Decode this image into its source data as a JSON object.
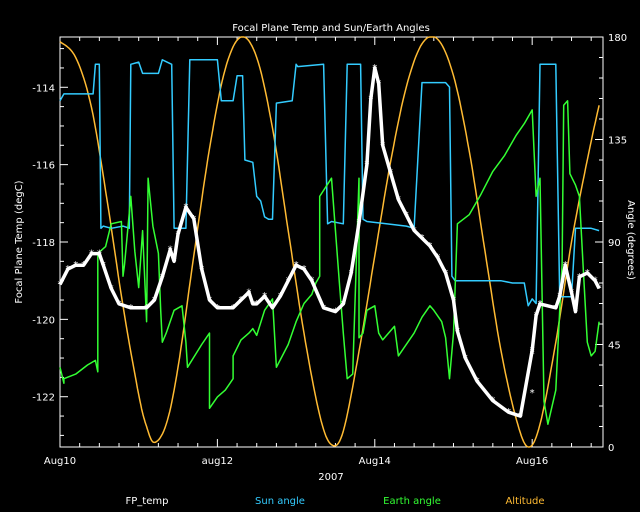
{
  "chart_data": {
    "type": "line",
    "title": "Focal Plane Temp and Sun/Earth Angles",
    "xlabel": "2007",
    "ylabel": "Focal Plane Temp (degC)",
    "ylabel_right": "Angle (degrees)",
    "x_ticks": [
      "Aug10",
      "aug12",
      "Aug14",
      "Aug16"
    ],
    "x_tick_days": [
      0,
      2,
      4,
      6
    ],
    "xlim_days": [
      0,
      6.9
    ],
    "ylim": [
      -123.3,
      -112.7
    ],
    "yticks": [
      -114,
      -116,
      -118,
      -120,
      -122
    ],
    "ylim_right": [
      0,
      180
    ],
    "yticks_right": [
      0,
      45,
      90,
      135,
      180
    ],
    "grid": false,
    "legend_position": "bottom",
    "series": [
      {
        "name": "FP_temp",
        "color": "#ffffff",
        "axis": "left",
        "marker": "star",
        "points": [
          [
            0.0,
            -119.1
          ],
          [
            0.1,
            -118.7
          ],
          [
            0.2,
            -118.6
          ],
          [
            0.3,
            -118.6
          ],
          [
            0.4,
            -118.3
          ],
          [
            0.5,
            -118.3
          ],
          [
            0.55,
            -118.6
          ],
          [
            0.65,
            -119.2
          ],
          [
            0.75,
            -119.6
          ],
          [
            0.9,
            -119.7
          ],
          [
            1.1,
            -119.7
          ],
          [
            1.2,
            -119.5
          ],
          [
            1.3,
            -118.9
          ],
          [
            1.4,
            -118.2
          ],
          [
            1.45,
            -118.5
          ],
          [
            1.5,
            -117.8
          ],
          [
            1.6,
            -117.1
          ],
          [
            1.7,
            -117.4
          ],
          [
            1.8,
            -118.7
          ],
          [
            1.9,
            -119.5
          ],
          [
            2.0,
            -119.7
          ],
          [
            2.2,
            -119.7
          ],
          [
            2.3,
            -119.5
          ],
          [
            2.4,
            -119.3
          ],
          [
            2.45,
            -119.6
          ],
          [
            2.5,
            -119.6
          ],
          [
            2.6,
            -119.4
          ],
          [
            2.7,
            -119.7
          ],
          [
            2.8,
            -119.4
          ],
          [
            2.9,
            -119.0
          ],
          [
            3.0,
            -118.6
          ],
          [
            3.1,
            -118.7
          ],
          [
            3.2,
            -119.0
          ],
          [
            3.35,
            -119.7
          ],
          [
            3.5,
            -119.8
          ],
          [
            3.6,
            -119.6
          ],
          [
            3.7,
            -118.8
          ],
          [
            3.8,
            -117.5
          ],
          [
            3.9,
            -116.0
          ],
          [
            3.95,
            -114.3
          ],
          [
            4.0,
            -113.5
          ],
          [
            4.05,
            -113.9
          ],
          [
            4.1,
            -115.5
          ],
          [
            4.2,
            -116.2
          ],
          [
            4.3,
            -116.9
          ],
          [
            4.4,
            -117.3
          ],
          [
            4.5,
            -117.7
          ],
          [
            4.6,
            -117.9
          ],
          [
            4.7,
            -118.1
          ],
          [
            4.8,
            -118.4
          ],
          [
            4.9,
            -118.8
          ],
          [
            5.0,
            -119.5
          ],
          [
            5.05,
            -120.3
          ],
          [
            5.15,
            -121.0
          ],
          [
            5.3,
            -121.6
          ],
          [
            5.5,
            -122.1
          ],
          [
            5.7,
            -122.4
          ],
          [
            5.85,
            -122.5
          ],
          [
            6.0,
            -120.8
          ],
          [
            6.05,
            -119.9
          ],
          [
            6.1,
            -119.6
          ],
          [
            6.3,
            -119.7
          ],
          [
            6.35,
            -119.4
          ],
          [
            6.42,
            -118.6
          ],
          [
            6.5,
            -119.3
          ],
          [
            6.55,
            -119.8
          ],
          [
            6.6,
            -118.9
          ],
          [
            6.7,
            -118.8
          ],
          [
            6.8,
            -119.0
          ],
          [
            6.85,
            -119.2
          ]
        ],
        "isolated_points": [
          [
            6.0,
            -120.9
          ],
          [
            6.0,
            -121.9
          ]
        ]
      },
      {
        "name": "Sun angle",
        "color": "#33ccff",
        "axis": "right",
        "points": [
          [
            0.0,
            152
          ],
          [
            0.05,
            155
          ],
          [
            0.2,
            155
          ],
          [
            0.42,
            155
          ],
          [
            0.45,
            168
          ],
          [
            0.5,
            168
          ],
          [
            0.52,
            96
          ],
          [
            0.55,
            97
          ],
          [
            0.65,
            96
          ],
          [
            0.8,
            97
          ],
          [
            0.88,
            96
          ],
          [
            0.9,
            168
          ],
          [
            1.0,
            169
          ],
          [
            1.05,
            164
          ],
          [
            1.25,
            164
          ],
          [
            1.3,
            170
          ],
          [
            1.42,
            168
          ],
          [
            1.45,
            96
          ],
          [
            1.6,
            96
          ],
          [
            1.65,
            170
          ],
          [
            2.0,
            170
          ],
          [
            2.05,
            152
          ],
          [
            2.2,
            152
          ],
          [
            2.25,
            163
          ],
          [
            2.32,
            163
          ],
          [
            2.35,
            126
          ],
          [
            2.45,
            125
          ],
          [
            2.5,
            110
          ],
          [
            2.55,
            108
          ],
          [
            2.6,
            101
          ],
          [
            2.65,
            100
          ],
          [
            2.7,
            100
          ],
          [
            2.75,
            151
          ],
          [
            2.95,
            152
          ],
          [
            3.0,
            168
          ],
          [
            3.02,
            167
          ],
          [
            3.35,
            168
          ],
          [
            3.4,
            98
          ],
          [
            3.45,
            99
          ],
          [
            3.6,
            98
          ],
          [
            3.65,
            168
          ],
          [
            3.82,
            168
          ],
          [
            3.85,
            100
          ],
          [
            3.9,
            99
          ],
          [
            4.4,
            97
          ],
          [
            4.5,
            96
          ],
          [
            4.6,
            160
          ],
          [
            4.9,
            160
          ],
          [
            4.95,
            158
          ],
          [
            4.98,
            75
          ],
          [
            5.02,
            73
          ],
          [
            5.6,
            73
          ],
          [
            5.75,
            72
          ],
          [
            5.9,
            72
          ],
          [
            5.95,
            62
          ],
          [
            6.0,
            65
          ],
          [
            6.05,
            63
          ],
          [
            6.1,
            168
          ],
          [
            6.3,
            168
          ],
          [
            6.35,
            66
          ],
          [
            6.5,
            66
          ],
          [
            6.55,
            96
          ],
          [
            6.75,
            96
          ],
          [
            6.85,
            95
          ]
        ]
      },
      {
        "name": "Earth angle",
        "color": "#33ff33",
        "axis": "right",
        "points": [
          [
            0.0,
            35
          ],
          [
            0.05,
            28
          ],
          [
            0.05,
            30
          ],
          [
            0.2,
            32
          ],
          [
            0.35,
            36
          ],
          [
            0.45,
            38
          ],
          [
            0.48,
            33
          ],
          [
            0.48,
            85
          ],
          [
            0.58,
            88
          ],
          [
            0.65,
            98
          ],
          [
            0.78,
            99
          ],
          [
            0.8,
            75
          ],
          [
            0.82,
            80
          ],
          [
            0.9,
            110
          ],
          [
            0.95,
            86
          ],
          [
            1.0,
            70
          ],
          [
            1.05,
            95
          ],
          [
            1.1,
            55
          ],
          [
            1.12,
            118
          ],
          [
            1.18,
            97
          ],
          [
            1.25,
            85
          ],
          [
            1.28,
            60
          ],
          [
            1.3,
            46
          ],
          [
            1.35,
            50
          ],
          [
            1.45,
            60
          ],
          [
            1.55,
            62
          ],
          [
            1.6,
            46
          ],
          [
            1.62,
            35
          ],
          [
            1.8,
            45
          ],
          [
            1.9,
            50
          ],
          [
            1.9,
            17
          ],
          [
            2.0,
            22
          ],
          [
            2.1,
            25
          ],
          [
            2.2,
            30
          ],
          [
            2.2,
            40
          ],
          [
            2.3,
            47
          ],
          [
            2.4,
            50
          ],
          [
            2.45,
            52
          ],
          [
            2.5,
            49
          ],
          [
            2.6,
            60
          ],
          [
            2.7,
            65
          ],
          [
            2.75,
            35
          ],
          [
            2.9,
            45
          ],
          [
            3.0,
            55
          ],
          [
            3.1,
            63
          ],
          [
            3.2,
            67
          ],
          [
            3.25,
            72
          ],
          [
            3.3,
            75
          ],
          [
            3.3,
            110
          ],
          [
            3.45,
            118
          ],
          [
            3.55,
            72
          ],
          [
            3.6,
            50
          ],
          [
            3.65,
            30
          ],
          [
            3.72,
            32
          ],
          [
            3.8,
            118
          ],
          [
            3.8,
            48
          ],
          [
            3.85,
            50
          ],
          [
            3.9,
            60
          ],
          [
            4.0,
            62
          ],
          [
            4.05,
            50
          ],
          [
            4.1,
            47
          ],
          [
            4.25,
            53
          ],
          [
            4.3,
            40
          ],
          [
            4.5,
            50
          ],
          [
            4.6,
            57
          ],
          [
            4.7,
            62
          ],
          [
            4.75,
            60
          ],
          [
            4.85,
            55
          ],
          [
            4.9,
            48
          ],
          [
            4.95,
            30
          ],
          [
            5.0,
            50
          ],
          [
            5.05,
            98
          ],
          [
            5.2,
            102
          ],
          [
            5.35,
            111
          ],
          [
            5.5,
            121
          ],
          [
            5.65,
            128
          ],
          [
            5.8,
            137
          ],
          [
            5.9,
            142
          ],
          [
            6.0,
            148
          ],
          [
            6.05,
            110
          ],
          [
            6.1,
            118
          ],
          [
            6.15,
            20
          ],
          [
            6.2,
            10
          ],
          [
            6.3,
            25
          ],
          [
            6.35,
            60
          ],
          [
            6.38,
            80
          ],
          [
            6.4,
            150
          ],
          [
            6.45,
            152
          ],
          [
            6.48,
            120
          ],
          [
            6.55,
            115
          ],
          [
            6.6,
            110
          ],
          [
            6.65,
            78
          ],
          [
            6.7,
            46
          ],
          [
            6.75,
            40
          ],
          [
            6.8,
            42
          ],
          [
            6.85,
            55
          ]
        ]
      },
      {
        "name": "Altitude",
        "color": "#ffbb33",
        "axis": "right",
        "sampled": true,
        "points": [
          [
            0.0,
            178
          ],
          [
            0.2,
            171
          ],
          [
            0.4,
            149
          ],
          [
            0.6,
            108
          ],
          [
            0.8,
            62
          ],
          [
            1.0,
            23
          ],
          [
            1.1,
            9
          ],
          [
            1.2,
            2
          ],
          [
            1.35,
            10
          ],
          [
            1.5,
            35
          ],
          [
            1.7,
            84
          ],
          [
            1.9,
            131
          ],
          [
            2.1,
            166
          ],
          [
            2.3,
            180
          ],
          [
            2.5,
            171
          ],
          [
            2.7,
            140
          ],
          [
            2.9,
            95
          ],
          [
            3.1,
            50
          ],
          [
            3.3,
            14
          ],
          [
            3.45,
            1
          ],
          [
            3.6,
            7
          ],
          [
            3.8,
            42
          ],
          [
            4.0,
            84
          ],
          [
            4.2,
            125
          ],
          [
            4.4,
            158
          ],
          [
            4.6,
            177
          ],
          [
            4.8,
            179
          ],
          [
            5.0,
            163
          ],
          [
            5.2,
            130
          ],
          [
            5.4,
            86
          ],
          [
            5.6,
            43
          ],
          [
            5.8,
            12
          ],
          [
            5.95,
            0
          ],
          [
            6.1,
            10
          ],
          [
            6.3,
            46
          ],
          [
            6.5,
            90
          ],
          [
            6.7,
            126
          ],
          [
            6.85,
            150
          ]
        ]
      }
    ]
  }
}
